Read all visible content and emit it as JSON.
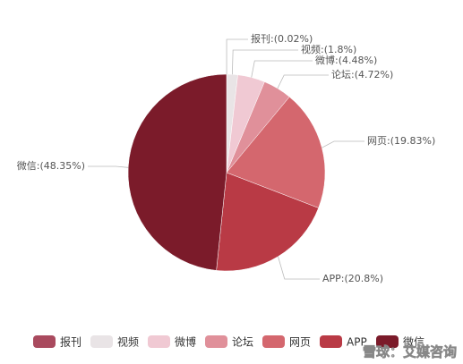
{
  "chart_data": {
    "type": "pie",
    "categories": [
      "报刊",
      "视频",
      "微博",
      "论坛",
      "网页",
      "APP",
      "微信"
    ],
    "values": [
      0.02,
      1.8,
      4.48,
      4.72,
      19.83,
      20.8,
      48.35
    ],
    "value_labels": [
      "报刊:(0.02%)",
      "视频:(1.8%)",
      "微博:(4.48%)",
      "论坛:(4.72%)",
      "网页:(19.83%)",
      "APP:(20.8%)",
      "微信:(48.35%)"
    ],
    "colors": [
      "#a94a5e",
      "#e9e4e6",
      "#f0c9d3",
      "#e0909a",
      "#d4676e",
      "#b93a45",
      "#7b1b2a"
    ],
    "legend": "bottom",
    "watermark": "雪球：艾媒咨询"
  }
}
